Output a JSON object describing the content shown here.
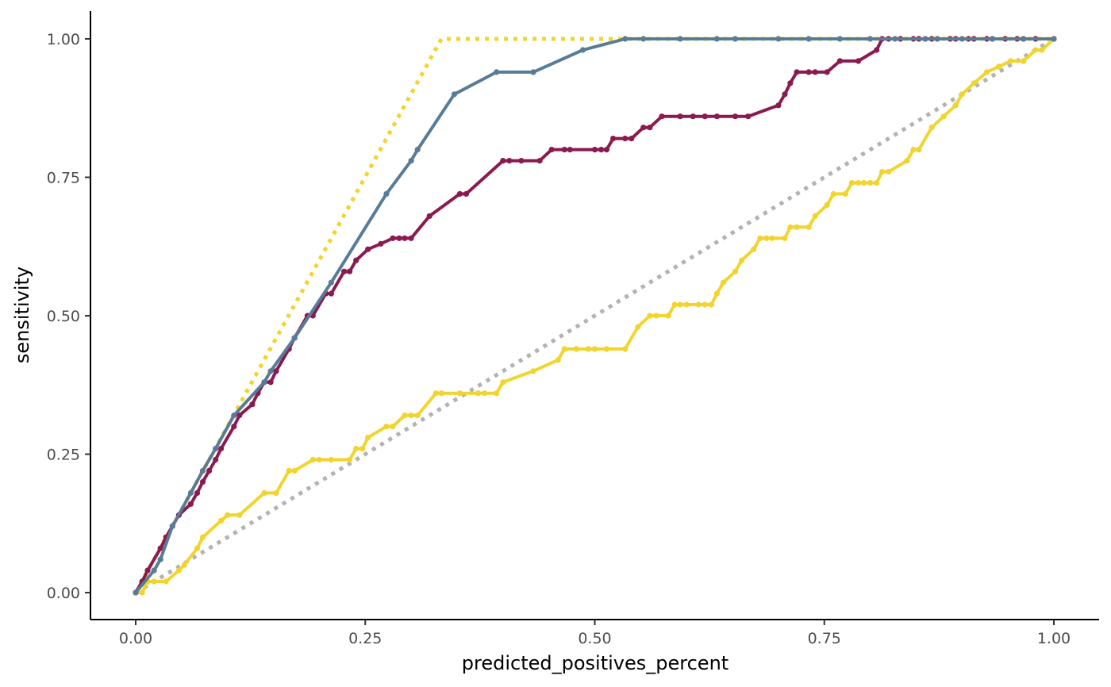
{
  "chart_data": {
    "type": "line",
    "xlabel": "predicted_positives_percent",
    "ylabel": "sensitivity",
    "xlim": [
      -0.05,
      1.05
    ],
    "ylim": [
      -0.05,
      1.05
    ],
    "x_ticks": [
      {
        "value": 0,
        "label": "0.00"
      },
      {
        "value": 0.25,
        "label": "0.25"
      },
      {
        "value": 0.5,
        "label": "0.50"
      },
      {
        "value": 0.75,
        "label": "0.75"
      },
      {
        "value": 1,
        "label": "1.00"
      }
    ],
    "y_ticks": [
      {
        "value": 0,
        "label": "0.00"
      },
      {
        "value": 0.25,
        "label": "0.25"
      },
      {
        "value": 0.5,
        "label": "0.50"
      },
      {
        "value": 0.75,
        "label": "0.75"
      },
      {
        "value": 1,
        "label": "1.00"
      }
    ],
    "grid": false,
    "series": [
      {
        "color": "#b3b3b3",
        "style": "dotted",
        "points": false,
        "x": [
          0,
          1
        ],
        "y": [
          0,
          1
        ]
      },
      {
        "color": "#f2d42e",
        "style": "dotted",
        "points": false,
        "x": [
          0,
          0.333,
          1
        ],
        "y": [
          0,
          1,
          1
        ]
      },
      {
        "color": "#f2d42e",
        "style": "solid",
        "points": true,
        "x": [
          0,
          0.007,
          0.013,
          0.02,
          0.033,
          0.047,
          0.053,
          0.067,
          0.073,
          0.093,
          0.1,
          0.113,
          0.14,
          0.153,
          0.167,
          0.173,
          0.193,
          0.2,
          0.213,
          0.233,
          0.24,
          0.247,
          0.253,
          0.273,
          0.28,
          0.293,
          0.3,
          0.307,
          0.327,
          0.333,
          0.353,
          0.373,
          0.38,
          0.393,
          0.4,
          0.433,
          0.46,
          0.467,
          0.48,
          0.493,
          0.5,
          0.513,
          0.533,
          0.547,
          0.56,
          0.567,
          0.58,
          0.587,
          0.593,
          0.6,
          0.613,
          0.62,
          0.627,
          0.633,
          0.64,
          0.653,
          0.66,
          0.673,
          0.68,
          0.687,
          0.693,
          0.707,
          0.713,
          0.72,
          0.733,
          0.74,
          0.753,
          0.76,
          0.773,
          0.78,
          0.787,
          0.793,
          0.8,
          0.807,
          0.813,
          0.82,
          0.84,
          0.847,
          0.853,
          0.867,
          0.88,
          0.893,
          0.9,
          0.913,
          0.927,
          0.94,
          0.953,
          0.967,
          0.98,
          0.987,
          1
        ],
        "y": [
          0,
          0,
          0.02,
          0.02,
          0.02,
          0.04,
          0.05,
          0.08,
          0.1,
          0.13,
          0.14,
          0.14,
          0.18,
          0.18,
          0.22,
          0.22,
          0.24,
          0.24,
          0.24,
          0.24,
          0.26,
          0.26,
          0.28,
          0.3,
          0.3,
          0.32,
          0.32,
          0.32,
          0.36,
          0.36,
          0.36,
          0.36,
          0.36,
          0.36,
          0.38,
          0.4,
          0.42,
          0.44,
          0.44,
          0.44,
          0.44,
          0.44,
          0.44,
          0.48,
          0.5,
          0.5,
          0.5,
          0.52,
          0.52,
          0.52,
          0.52,
          0.52,
          0.52,
          0.54,
          0.56,
          0.58,
          0.6,
          0.62,
          0.64,
          0.64,
          0.64,
          0.64,
          0.66,
          0.66,
          0.66,
          0.68,
          0.7,
          0.72,
          0.72,
          0.74,
          0.74,
          0.74,
          0.74,
          0.74,
          0.76,
          0.76,
          0.78,
          0.8,
          0.8,
          0.84,
          0.86,
          0.88,
          0.9,
          0.92,
          0.94,
          0.95,
          0.96,
          0.96,
          0.98,
          0.98,
          1
        ]
      },
      {
        "color": "#8b1a4e",
        "style": "solid",
        "points": true,
        "x": [
          0,
          0.007,
          0.013,
          0.027,
          0.033,
          0.04,
          0.047,
          0.06,
          0.067,
          0.073,
          0.08,
          0.087,
          0.093,
          0.107,
          0.113,
          0.127,
          0.133,
          0.14,
          0.147,
          0.153,
          0.167,
          0.173,
          0.187,
          0.193,
          0.207,
          0.213,
          0.227,
          0.233,
          0.24,
          0.253,
          0.267,
          0.28,
          0.287,
          0.293,
          0.3,
          0.32,
          0.353,
          0.36,
          0.4,
          0.407,
          0.42,
          0.44,
          0.453,
          0.467,
          0.473,
          0.5,
          0.507,
          0.513,
          0.52,
          0.533,
          0.54,
          0.553,
          0.56,
          0.573,
          0.593,
          0.607,
          0.62,
          0.633,
          0.653,
          0.667,
          0.7,
          0.707,
          0.713,
          0.72,
          0.733,
          0.74,
          0.753,
          0.767,
          0.787,
          0.807,
          0.813,
          0.82,
          0.833,
          0.847,
          0.853,
          0.86,
          0.867,
          0.873,
          0.887,
          0.893,
          0.907,
          0.913,
          0.927,
          0.933,
          0.947,
          0.96,
          0.967,
          0.98,
          1
        ],
        "y": [
          0,
          0.02,
          0.04,
          0.08,
          0.1,
          0.12,
          0.14,
          0.16,
          0.18,
          0.2,
          0.22,
          0.24,
          0.26,
          0.3,
          0.32,
          0.34,
          0.36,
          0.38,
          0.38,
          0.4,
          0.44,
          0.46,
          0.5,
          0.5,
          0.54,
          0.54,
          0.58,
          0.58,
          0.6,
          0.62,
          0.63,
          0.64,
          0.64,
          0.64,
          0.64,
          0.68,
          0.72,
          0.72,
          0.78,
          0.78,
          0.78,
          0.78,
          0.8,
          0.8,
          0.8,
          0.8,
          0.8,
          0.8,
          0.82,
          0.82,
          0.82,
          0.84,
          0.84,
          0.86,
          0.86,
          0.86,
          0.86,
          0.86,
          0.86,
          0.86,
          0.88,
          0.9,
          0.92,
          0.94,
          0.94,
          0.94,
          0.94,
          0.96,
          0.96,
          0.98,
          1,
          1,
          1,
          1,
          1,
          1,
          1,
          1,
          1,
          1,
          1,
          1,
          1,
          1,
          1,
          1,
          1,
          1,
          1
        ]
      },
      {
        "color": "#587c97",
        "style": "solid",
        "points": true,
        "x": [
          0,
          0.02,
          0.027,
          0.04,
          0.06,
          0.073,
          0.087,
          0.107,
          0.14,
          0.147,
          0.173,
          0.213,
          0.273,
          0.3,
          0.307,
          0.347,
          0.393,
          0.433,
          0.487,
          0.533,
          0.553,
          0.593,
          0.633,
          0.653,
          0.7,
          0.733,
          0.767,
          0.8,
          0.827,
          0.86,
          0.873,
          0.9,
          0.933,
          0.967,
          1
        ],
        "y": [
          0,
          0.04,
          0.06,
          0.12,
          0.18,
          0.22,
          0.26,
          0.32,
          0.38,
          0.4,
          0.46,
          0.56,
          0.72,
          0.78,
          0.8,
          0.9,
          0.94,
          0.94,
          0.98,
          1,
          1,
          1,
          1,
          1,
          1,
          1,
          1,
          1,
          1,
          1,
          1,
          1,
          1,
          1,
          1
        ]
      }
    ]
  }
}
